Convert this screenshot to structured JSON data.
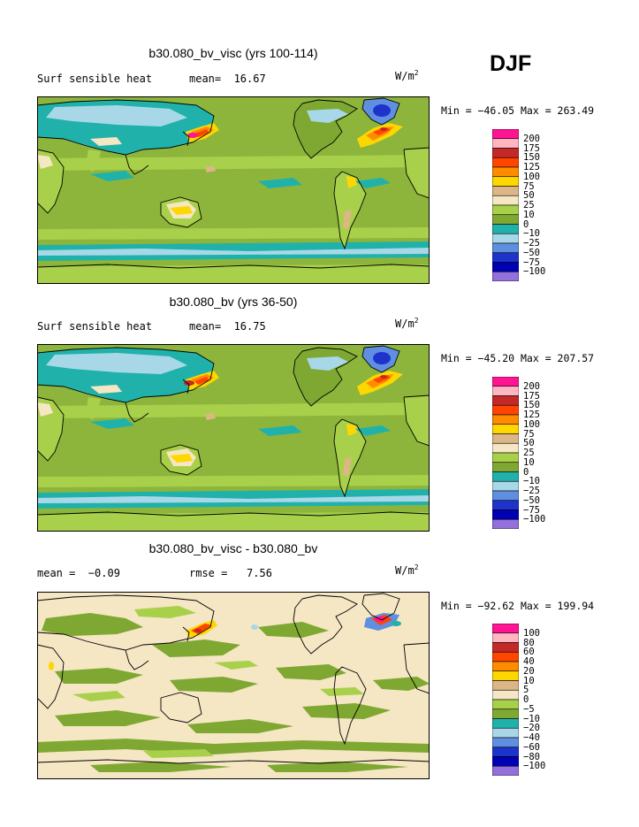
{
  "season": "DJF",
  "units_base": "W/m",
  "units_exp": "2",
  "panels": [
    {
      "title": "b30.080_bv_visc (yrs 100-114)",
      "subtitle_left": "Surf sensible heat",
      "subtitle_mid": "mean=  16.67",
      "minmax": "Min = −46.05 Max = 263.49",
      "levels": [
        "200",
        "175",
        "150",
        "125",
        "100",
        "75",
        "50",
        "25",
        "10",
        "0",
        "−10",
        "−25",
        "−50",
        "−75",
        "−100"
      ]
    },
    {
      "title": "b30.080_bv (yrs 36-50)",
      "subtitle_left": "Surf sensible heat",
      "subtitle_mid": "mean=  16.75",
      "minmax": "Min = −45.20 Max = 207.57",
      "levels": [
        "200",
        "175",
        "150",
        "125",
        "100",
        "75",
        "50",
        "25",
        "10",
        "0",
        "−10",
        "−25",
        "−50",
        "−75",
        "−100"
      ]
    },
    {
      "title": "b30.080_bv_visc - b30.080_bv",
      "subtitle_left": "mean =  −0.09",
      "subtitle_mid": "rmse =   7.56",
      "minmax": "Min = −92.62 Max = 199.94",
      "levels": [
        "100",
        "80",
        "60",
        "40",
        "20",
        "10",
        "5",
        "0",
        "−5",
        "−10",
        "−20",
        "−40",
        "−60",
        "−80",
        "−100"
      ]
    }
  ],
  "colors": {
    "scale": [
      "#ff1493",
      "#ffb6c1",
      "#c42828",
      "#ff4500",
      "#ff8c00",
      "#ffd700",
      "#ddb687",
      "#f5e6c4",
      "#a8d04a",
      "#7fa832",
      "#20b2aa",
      "#a8d8e8",
      "#5f8fe0",
      "#1e32cc",
      "#0000b4",
      "#9370db"
    ],
    "ocean_base": "#8db53b",
    "diff_base": "#f5e6c4",
    "coast": "#000000"
  }
}
